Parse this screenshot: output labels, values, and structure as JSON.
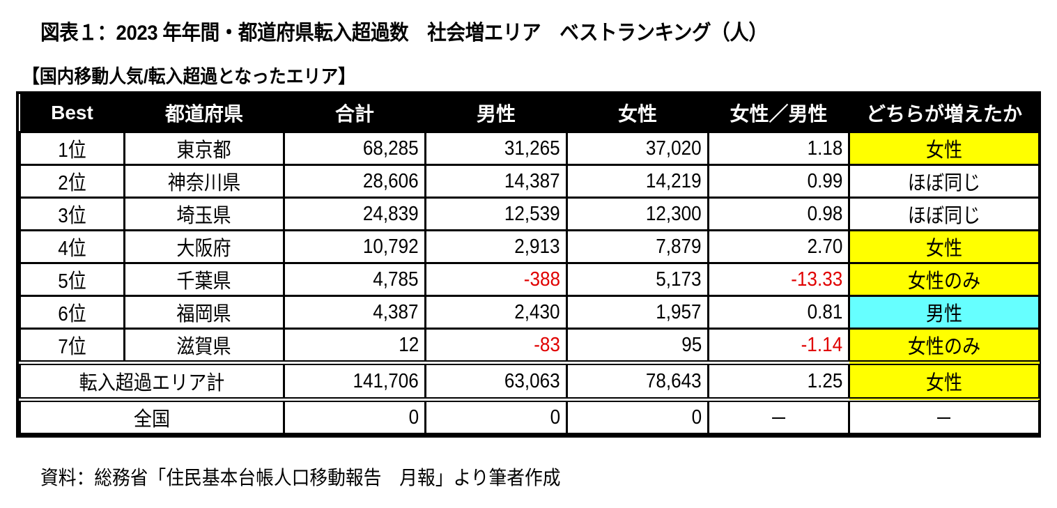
{
  "title": "図表１：2023 年年間・都道府県転入超過数　社会増エリア　ベストランキング（人）",
  "subtitle": "【国内移動人気/転入超過となったエリア】",
  "table": {
    "headers": [
      "Best",
      "都道府県",
      "合計",
      "男性",
      "女性",
      "女性／男性",
      "どちらが増えたか"
    ],
    "rows": [
      {
        "rank": "1位",
        "prefecture": "東京都",
        "total": "68,285",
        "male": "31,265",
        "female": "37,020",
        "ratio": "1.18",
        "which": "女性",
        "highlight": "yellow",
        "male_negative": false,
        "ratio_negative": false
      },
      {
        "rank": "2位",
        "prefecture": "神奈川県",
        "total": "28,606",
        "male": "14,387",
        "female": "14,219",
        "ratio": "0.99",
        "which": "ほぼ同じ",
        "highlight": "none",
        "male_negative": false,
        "ratio_negative": false
      },
      {
        "rank": "3位",
        "prefecture": "埼玉県",
        "total": "24,839",
        "male": "12,539",
        "female": "12,300",
        "ratio": "0.98",
        "which": "ほぼ同じ",
        "highlight": "none",
        "male_negative": false,
        "ratio_negative": false
      },
      {
        "rank": "4位",
        "prefecture": "大阪府",
        "total": "10,792",
        "male": "2,913",
        "female": "7,879",
        "ratio": "2.70",
        "which": "女性",
        "highlight": "yellow",
        "male_negative": false,
        "ratio_negative": false
      },
      {
        "rank": "5位",
        "prefecture": "千葉県",
        "total": "4,785",
        "male": "-388",
        "female": "5,173",
        "ratio": "-13.33",
        "which": "女性のみ",
        "highlight": "yellow",
        "male_negative": true,
        "ratio_negative": true
      },
      {
        "rank": "6位",
        "prefecture": "福岡県",
        "total": "4,387",
        "male": "2,430",
        "female": "1,957",
        "ratio": "0.81",
        "which": "男性",
        "highlight": "cyan",
        "male_negative": false,
        "ratio_negative": false
      },
      {
        "rank": "7位",
        "prefecture": "滋賀県",
        "total": "12",
        "male": "-83",
        "female": "95",
        "ratio": "-1.14",
        "which": "女性のみ",
        "highlight": "yellow",
        "male_negative": true,
        "ratio_negative": true
      }
    ],
    "total_row": {
      "label": "転入超過エリア計",
      "total": "141,706",
      "male": "63,063",
      "female": "78,643",
      "ratio": "1.25",
      "which": "女性",
      "highlight": "yellow"
    },
    "nation_row": {
      "label": "全国",
      "total": "0",
      "male": "0",
      "female": "0",
      "ratio": "－",
      "which": "－"
    }
  },
  "source": "資料：総務省「住民基本台帳人口移動報告　月報」より筆者作成",
  "colors": {
    "header_bg": "#000000",
    "header_text": "#ffffff",
    "highlight_female": "#ffff00",
    "highlight_male": "#66ffff",
    "negative_text": "#e00000"
  }
}
